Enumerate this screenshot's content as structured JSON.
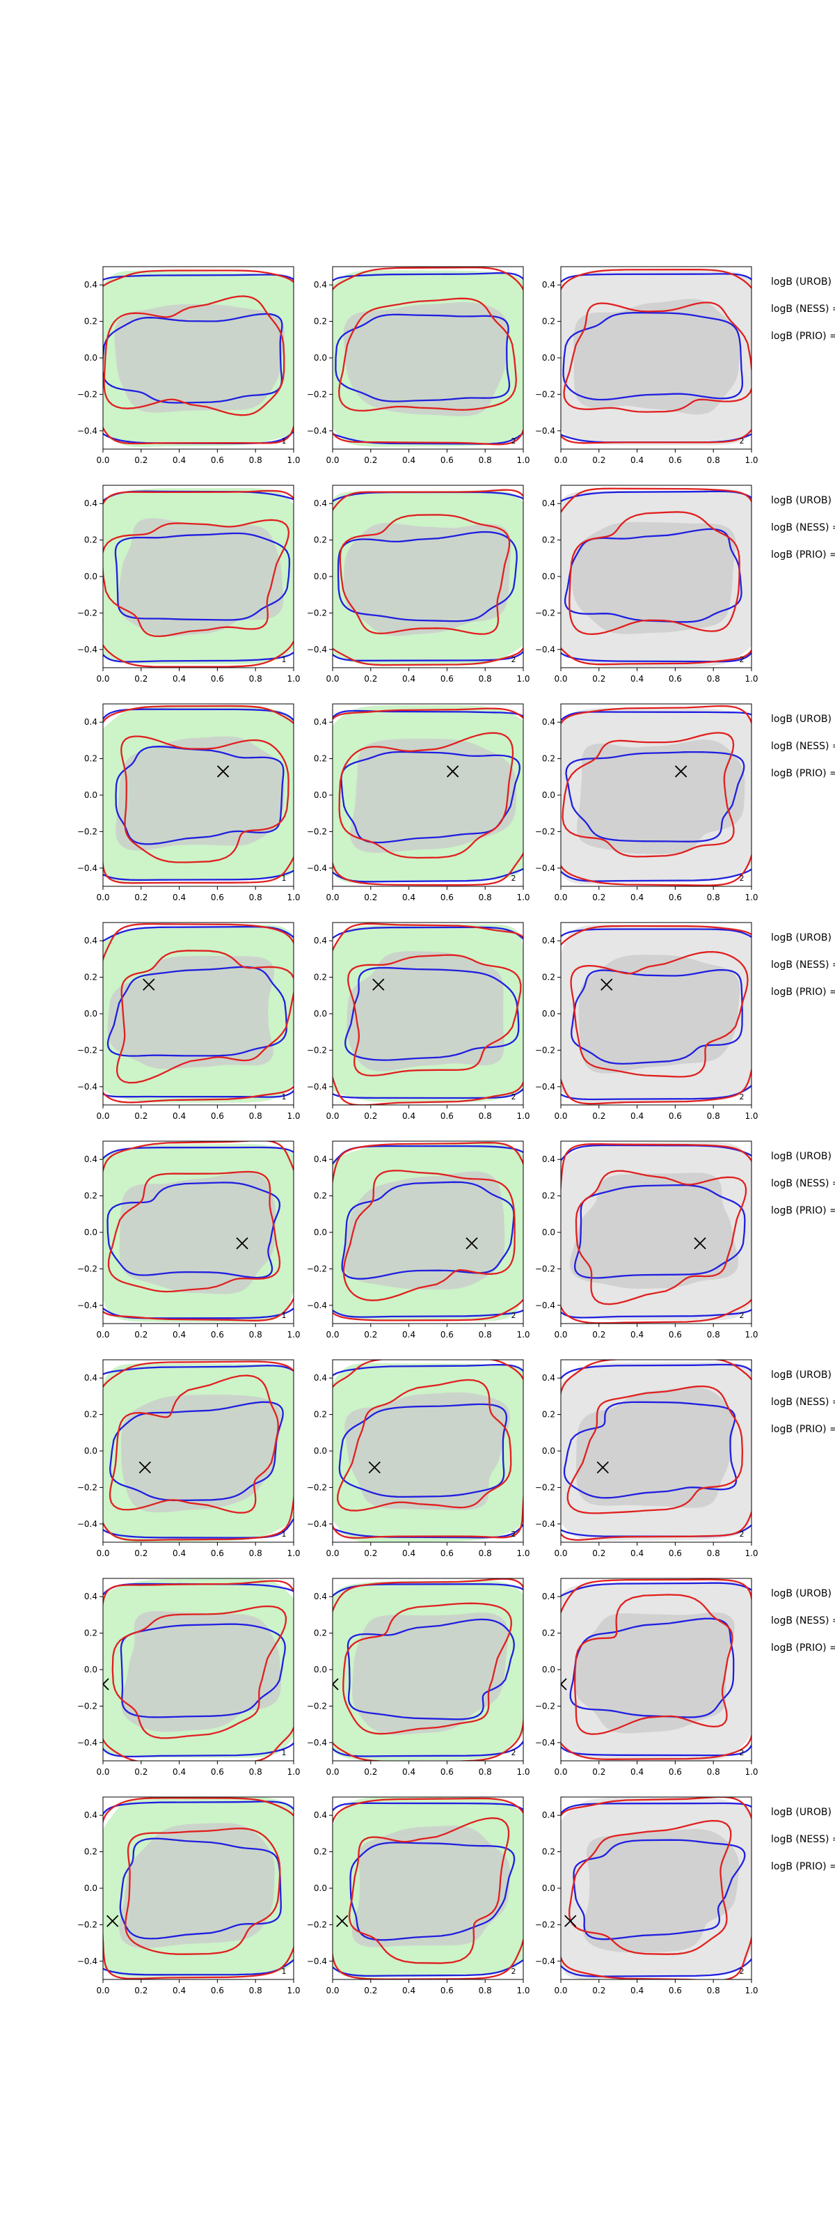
{
  "figure": {
    "side_labels": [
      "logB (UROB) =",
      "logB (NESS) =",
      "logB (PRIO) ="
    ]
  },
  "colors": {
    "outer_fill_green": "#cdf3c9",
    "outer_fill_grey": "#e6e6e6",
    "inner_fill": "#c9c9c9",
    "blue_contour": "#1f1fe0",
    "red_contour": "#e0201f",
    "marker": "#000000"
  },
  "chart_data": {
    "type": "contour-grid",
    "rows": 8,
    "columns": 3,
    "xlim": [
      0.0,
      1.0
    ],
    "ylim": [
      -0.5,
      0.5
    ],
    "xticks": [
      "0.0",
      "0.2",
      "0.4",
      "0.6",
      "0.8",
      "1.0"
    ],
    "yticks": [
      "0.4",
      "0.2",
      "0.0",
      "−0.2",
      "−0.4"
    ],
    "column_corner_labels": [
      "1",
      "2",
      "2"
    ],
    "column_outer_fill": [
      "green",
      "green",
      "grey"
    ],
    "markers": [
      null,
      null,
      [
        0.63,
        0.13
      ],
      [
        0.24,
        0.16
      ],
      [
        0.73,
        -0.06
      ],
      [
        0.22,
        -0.09
      ],
      [
        0.0,
        -0.08
      ],
      [
        0.05,
        -0.18
      ]
    ]
  }
}
